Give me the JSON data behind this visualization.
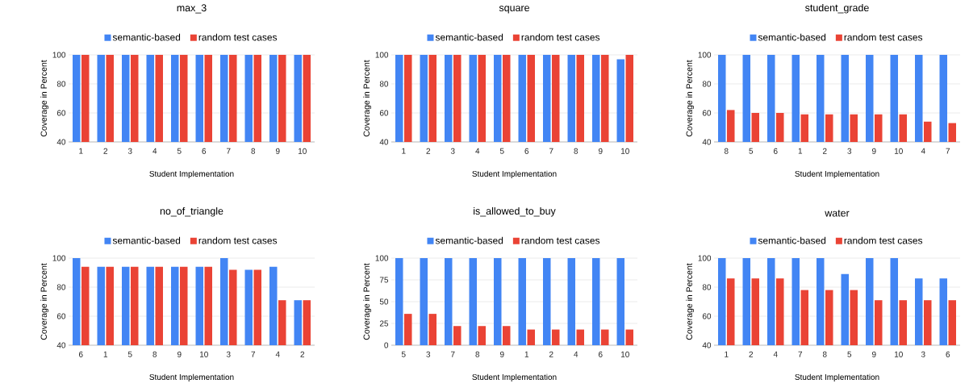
{
  "chart_data": [
    {
      "type": "bar",
      "title": "max_3",
      "xlabel": "Student Implementation",
      "ylabel": "Coverage in Percent",
      "categories": [
        "1",
        "2",
        "3",
        "4",
        "5",
        "6",
        "7",
        "8",
        "9",
        "10"
      ],
      "ylim": [
        40,
        100
      ],
      "yticks": [
        40,
        60,
        80,
        100
      ],
      "grid": "y",
      "legend": "top",
      "series": [
        {
          "name": "semantic-based",
          "color": "#4285f4",
          "values": [
            100,
            100,
            100,
            100,
            100,
            100,
            100,
            100,
            100,
            100
          ]
        },
        {
          "name": "random test cases",
          "color": "#ea4335",
          "values": [
            100,
            100,
            100,
            100,
            100,
            100,
            100,
            100,
            100,
            100
          ]
        }
      ]
    },
    {
      "type": "bar",
      "title": "square",
      "xlabel": "Student Implementation",
      "ylabel": "Coverage in Percent",
      "categories": [
        "1",
        "2",
        "3",
        "4",
        "5",
        "6",
        "7",
        "8",
        "9",
        "10"
      ],
      "ylim": [
        40,
        100
      ],
      "yticks": [
        40,
        60,
        80,
        100
      ],
      "grid": "y",
      "legend": "top",
      "series": [
        {
          "name": "semantic-based",
          "color": "#4285f4",
          "values": [
            100,
            100,
            100,
            100,
            100,
            100,
            100,
            100,
            100,
            97
          ]
        },
        {
          "name": "random test cases",
          "color": "#ea4335",
          "values": [
            100,
            100,
            100,
            100,
            100,
            100,
            100,
            100,
            100,
            100
          ]
        }
      ]
    },
    {
      "type": "bar",
      "title": "student_grade",
      "xlabel": "Student Implementation",
      "ylabel": "Coverage in Percent",
      "categories": [
        "8",
        "5",
        "6",
        "1",
        "2",
        "3",
        "9",
        "10",
        "4",
        "7"
      ],
      "ylim": [
        40,
        100
      ],
      "yticks": [
        40,
        60,
        80,
        100
      ],
      "grid": "y",
      "legend": "top",
      "series": [
        {
          "name": "semantic-based",
          "color": "#4285f4",
          "values": [
            100,
            100,
            100,
            100,
            100,
            100,
            100,
            100,
            100,
            100
          ]
        },
        {
          "name": "random test cases",
          "color": "#ea4335",
          "values": [
            62,
            60,
            60,
            59,
            59,
            59,
            59,
            59,
            54,
            53
          ]
        }
      ]
    },
    {
      "type": "bar",
      "title": "no_of_triangle",
      "xlabel": "Student Implementation",
      "ylabel": "Coverage in Percent",
      "categories": [
        "6",
        "1",
        "5",
        "8",
        "9",
        "10",
        "3",
        "7",
        "4",
        "2"
      ],
      "ylim": [
        40,
        100
      ],
      "yticks": [
        40,
        60,
        80,
        100
      ],
      "grid": "y",
      "legend": "top",
      "series": [
        {
          "name": "semantic-based",
          "color": "#4285f4",
          "values": [
            100,
            94,
            94,
            94,
            94,
            94,
            100,
            92,
            94,
            71
          ]
        },
        {
          "name": "random test cases",
          "color": "#ea4335",
          "values": [
            94,
            94,
            94,
            94,
            94,
            94,
            92,
            92,
            71,
            71
          ]
        }
      ]
    },
    {
      "type": "bar",
      "title": "is_allowed_to_buy",
      "xlabel": "Student Implementation",
      "ylabel": "Coverage in Percent",
      "categories": [
        "5",
        "3",
        "7",
        "8",
        "9",
        "1",
        "2",
        "4",
        "6",
        "10"
      ],
      "ylim": [
        0,
        100
      ],
      "yticks": [
        0,
        25,
        50,
        75,
        100
      ],
      "grid": "y",
      "legend": "top",
      "series": [
        {
          "name": "semantic-based",
          "color": "#4285f4",
          "values": [
            100,
            100,
            100,
            100,
            100,
            100,
            100,
            100,
            100,
            100
          ]
        },
        {
          "name": "random test cases",
          "color": "#ea4335",
          "values": [
            36,
            36,
            22,
            22,
            22,
            18,
            18,
            18,
            18,
            18
          ]
        }
      ]
    },
    {
      "type": "bar",
      "title": "water",
      "xlabel": "Student Implementation",
      "ylabel": "Coverage in Percent",
      "categories": [
        "1",
        "2",
        "4",
        "7",
        "8",
        "5",
        "9",
        "10",
        "3",
        "6"
      ],
      "ylim": [
        40,
        100
      ],
      "yticks": [
        40,
        60,
        80,
        100
      ],
      "grid": "y",
      "legend": "top",
      "series": [
        {
          "name": "semantic-based",
          "color": "#4285f4",
          "values": [
            100,
            100,
            100,
            100,
            100,
            89,
            100,
            100,
            86,
            86
          ]
        },
        {
          "name": "random test cases",
          "color": "#ea4335",
          "values": [
            86,
            86,
            86,
            78,
            78,
            78,
            71,
            71,
            71,
            71
          ]
        }
      ]
    }
  ]
}
